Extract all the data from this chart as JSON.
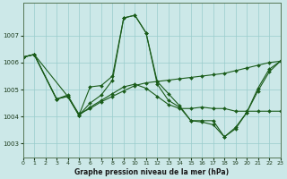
{
  "title": "Graphe pression niveau de la mer (hPa)",
  "background_color": "#cce8e8",
  "grid_color": "#99cccc",
  "line_color": "#1a5c1a",
  "x_min": 0,
  "x_max": 23,
  "y_min": 1002.5,
  "y_max": 1008.2,
  "yticks": [
    1003,
    1004,
    1005,
    1006,
    1007
  ],
  "xticks": [
    0,
    1,
    2,
    3,
    4,
    5,
    6,
    7,
    8,
    9,
    10,
    11,
    12,
    13,
    14,
    15,
    16,
    17,
    18,
    19,
    20,
    21,
    22,
    23
  ],
  "series": [
    {
      "x": [
        0,
        1,
        3,
        4,
        5,
        6,
        7,
        8,
        9,
        10,
        11,
        12,
        13,
        14,
        15,
        16,
        17,
        18,
        19,
        20,
        21,
        22,
        23
      ],
      "y": [
        1006.2,
        1006.3,
        1004.65,
        1004.8,
        1004.05,
        1005.1,
        1005.15,
        1005.5,
        1007.65,
        1007.75,
        1007.1,
        1005.3,
        1004.85,
        1004.4,
        1003.85,
        1003.85,
        1003.85,
        1003.25,
        1003.6,
        1004.15,
        1004.95,
        1005.65,
        1006.05
      ]
    },
    {
      "x": [
        0,
        1,
        4,
        5,
        6,
        7,
        8,
        9,
        10,
        11,
        12,
        13,
        14,
        15,
        16,
        17,
        18,
        19,
        20,
        21,
        22,
        23
      ],
      "y": [
        1006.2,
        1006.3,
        1004.75,
        1004.1,
        1004.3,
        1004.55,
        1004.75,
        1004.95,
        1005.15,
        1005.25,
        1005.3,
        1005.35,
        1005.4,
        1005.45,
        1005.5,
        1005.55,
        1005.6,
        1005.7,
        1005.8,
        1005.9,
        1006.0,
        1006.05
      ]
    },
    {
      "x": [
        0,
        1,
        3,
        4,
        5,
        6,
        7,
        8,
        9,
        10,
        11,
        12,
        13,
        14,
        15,
        16,
        17,
        18,
        19,
        20,
        21,
        22,
        23
      ],
      "y": [
        1006.2,
        1006.3,
        1004.65,
        1004.75,
        1004.05,
        1004.35,
        1004.6,
        1004.85,
        1005.1,
        1005.2,
        1005.05,
        1004.75,
        1004.45,
        1004.3,
        1004.3,
        1004.35,
        1004.3,
        1004.3,
        1004.2,
        1004.2,
        1004.2,
        1004.2,
        1004.2
      ]
    },
    {
      "x": [
        0,
        1,
        3,
        4,
        5,
        6,
        7,
        8,
        9,
        10,
        11,
        12,
        13,
        14,
        15,
        16,
        17,
        18,
        19,
        20,
        21,
        22,
        23
      ],
      "y": [
        1006.2,
        1006.3,
        1004.65,
        1004.75,
        1004.05,
        1004.5,
        1004.8,
        1005.35,
        1007.65,
        1007.75,
        1007.1,
        1005.2,
        1004.6,
        1004.35,
        1003.85,
        1003.8,
        1003.7,
        1003.25,
        1003.55,
        1004.15,
        1005.05,
        1005.75,
        1006.05
      ]
    }
  ]
}
